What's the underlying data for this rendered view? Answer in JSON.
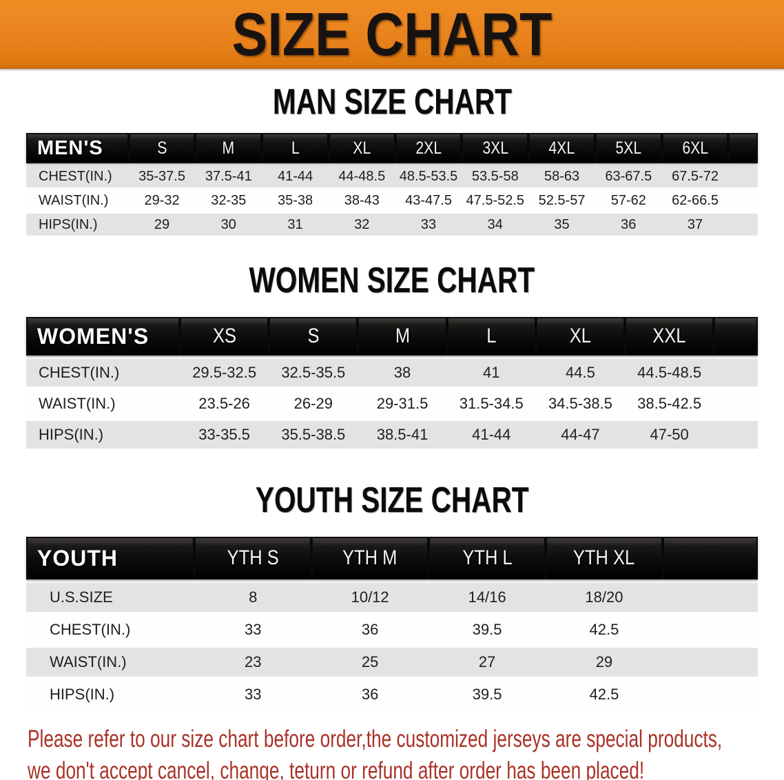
{
  "banner": {
    "title": "SIZE CHART"
  },
  "men": {
    "heading": "MAN SIZE CHART",
    "table": {
      "label": "MEN'S",
      "columns": [
        "S",
        "M",
        "L",
        "XL",
        "2XL",
        "3XL",
        "4XL",
        "5XL",
        "6XL"
      ],
      "rows": [
        {
          "label": "CHEST(IN.)",
          "values": [
            "35-37.5",
            "37.5-41",
            "41-44",
            "44-48.5",
            "48.5-53.5",
            "53.5-58",
            "58-63",
            "63-67.5",
            "67.5-72"
          ]
        },
        {
          "label": "WAIST(IN.)",
          "values": [
            "29-32",
            "32-35",
            "35-38",
            "38-43",
            "43-47.5",
            "47.5-52.5",
            "52.5-57",
            "57-62",
            "62-66.5"
          ]
        },
        {
          "label": "HIPS(IN.)",
          "values": [
            "29",
            "30",
            "31",
            "32",
            "33",
            "34",
            "35",
            "36",
            "37"
          ]
        }
      ]
    }
  },
  "women": {
    "heading": "WOMEN SIZE CHART",
    "table": {
      "label": "WOMEN'S",
      "columns": [
        "XS",
        "S",
        "M",
        "L",
        "XL",
        "XXL"
      ],
      "rows": [
        {
          "label": "CHEST(IN.)",
          "values": [
            "29.5-32.5",
            "32.5-35.5",
            "38",
            "41",
            "44.5",
            "44.5-48.5"
          ]
        },
        {
          "label": "WAIST(IN.)",
          "values": [
            "23.5-26",
            "26-29",
            "29-31.5",
            "31.5-34.5",
            "34.5-38.5",
            "38.5-42.5"
          ]
        },
        {
          "label": "HIPS(IN.)",
          "values": [
            "33-35.5",
            "35.5-38.5",
            "38.5-41",
            "41-44",
            "44-47",
            "47-50"
          ]
        }
      ]
    }
  },
  "youth": {
    "heading": "YOUTH SIZE CHART",
    "table": {
      "label": "YOUTH",
      "columns": [
        "YTH S",
        "YTH M",
        "YTH L",
        "YTH XL"
      ],
      "rows": [
        {
          "label": "U.S.SIZE",
          "values": [
            "8",
            "10/12",
            "14/16",
            "18/20"
          ]
        },
        {
          "label": "CHEST(IN.)",
          "values": [
            "33",
            "36",
            "39.5",
            "42.5"
          ]
        },
        {
          "label": "WAIST(IN.)",
          "values": [
            "23",
            "25",
            "27",
            "29"
          ]
        },
        {
          "label": "HIPS(IN.)",
          "values": [
            "33",
            "36",
            "39.5",
            "42.5"
          ]
        }
      ]
    }
  },
  "disclaimer": {
    "line1": "Please refer to our size chart before order,the customized jerseys are special products,",
    "line2": "we don't accept cancel, change, teturn or refund after order has been placed!"
  },
  "colors": {
    "banner_orange": "#E8811C",
    "header_black": "#141414",
    "row_gray": "#E3E3E3",
    "disclaimer_red": "#A93228"
  }
}
